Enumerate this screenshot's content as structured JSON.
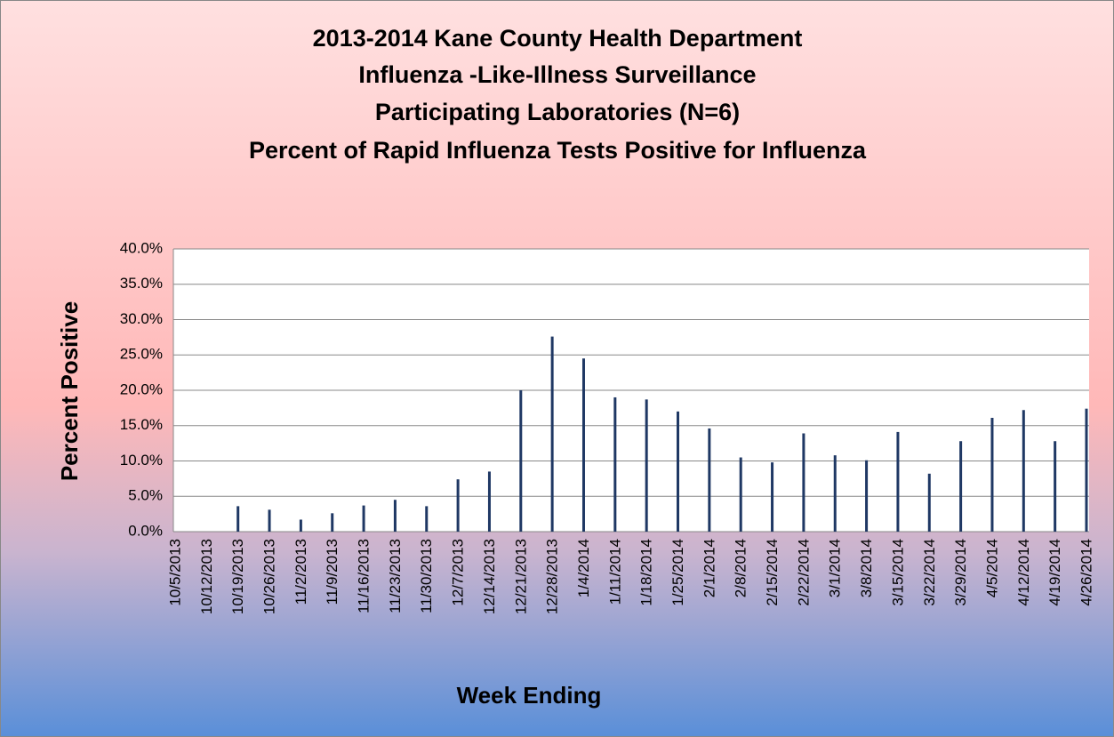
{
  "chart_data": {
    "type": "bar",
    "title": [
      "2013-2014 Kane County Health Department",
      "Influenza -Like-Illness Surveillance",
      "Participating Laboratories (N=6)",
      "Percent of Rapid Influenza Tests Positive for Influenza"
    ],
    "x_label": "Week Ending",
    "y_label": "Percent  Positive",
    "categories": [
      "10/5/2013",
      "10/12/2013",
      "10/19/2013",
      "10/26/2013",
      "11/2/2013",
      "11/9/2013",
      "11/16/2013",
      "11/23/2013",
      "11/30/2013",
      "12/7/2013",
      "12/14/2013",
      "12/21/2013",
      "12/28/2013",
      "1/4/2014",
      "1/11/2014",
      "1/18/2014",
      "1/25/2014",
      "2/1/2014",
      "2/8/2014",
      "2/15/2014",
      "2/22/2014",
      "3/1/2014",
      "3/8/2014",
      "3/15/2014",
      "3/22/2014",
      "3/29/2014",
      "4/5/2014",
      "4/12/2014",
      "4/19/2014",
      "4/26/2014"
    ],
    "values": [
      0,
      0,
      3.6,
      3.1,
      1.7,
      2.6,
      3.7,
      4.5,
      3.6,
      7.4,
      8.5,
      20.0,
      27.6,
      24.5,
      19.0,
      18.7,
      17.0,
      14.6,
      10.5,
      9.8,
      13.9,
      10.8,
      10.1,
      14.1,
      8.2,
      12.8,
      16.1,
      17.2,
      12.8,
      17.4
    ],
    "color": "#1f3864",
    "ylim": [
      0,
      40
    ],
    "yticks": [
      {
        "value": 0,
        "label": "0.0%"
      },
      {
        "value": 5,
        "label": "5.0%"
      },
      {
        "value": 10,
        "label": "10.0%"
      },
      {
        "value": 15,
        "label": "15.0%"
      },
      {
        "value": 20,
        "label": "20.0%"
      },
      {
        "value": 25,
        "label": "25.0%"
      },
      {
        "value": 30,
        "label": "30.0%"
      },
      {
        "value": 35,
        "label": "35.0%"
      },
      {
        "value": 40,
        "label": "40.0%"
      }
    ],
    "grid": true
  }
}
